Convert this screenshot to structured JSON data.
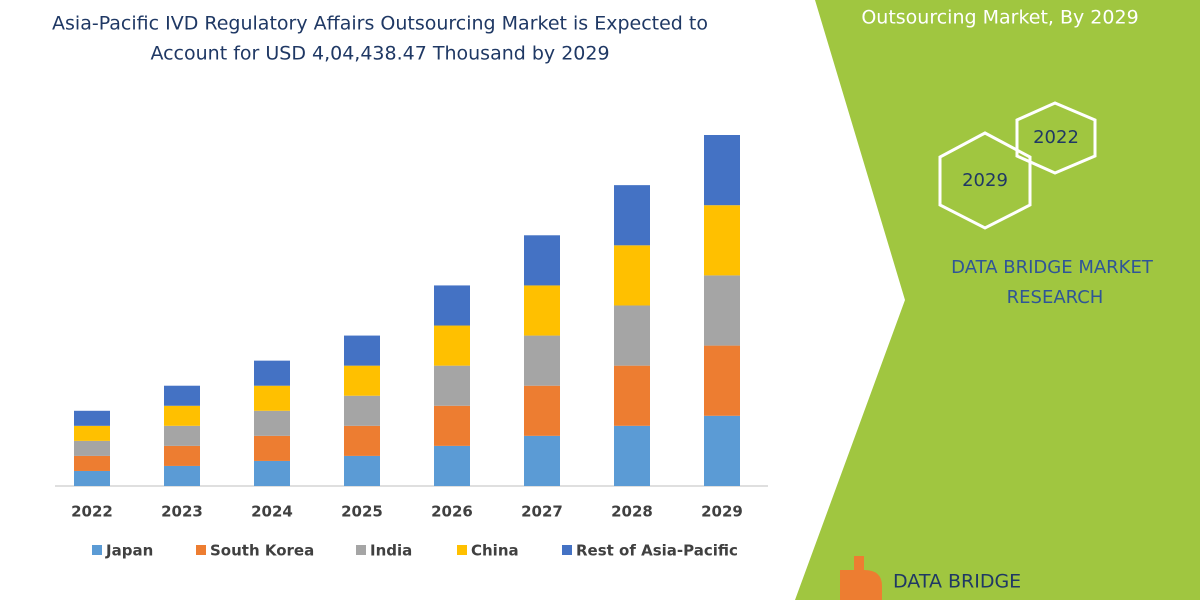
{
  "chart_data": {
    "type": "bar",
    "stacked": true,
    "title": "Asia-Pacific IVD Regulatory Affairs Outsourcing Market is Expected to",
    "subtitle": "Account for USD 4,04,438.47 Thousand by 2029",
    "categories": [
      "2022",
      "2023",
      "2024",
      "2025",
      "2026",
      "2027",
      "2028",
      "2029"
    ],
    "series": [
      {
        "name": "Japan",
        "color": "#5b9bd5",
        "values": [
          15,
          20,
          25,
          30,
          40,
          50,
          60,
          70
        ]
      },
      {
        "name": "South Korea",
        "color": "#ed7d31",
        "values": [
          15,
          20,
          25,
          30,
          40,
          50,
          60,
          70
        ]
      },
      {
        "name": "India",
        "color": "#a5a5a5",
        "values": [
          15,
          20,
          25,
          30,
          40,
          50,
          60,
          70
        ]
      },
      {
        "name": "China",
        "color": "#ffc000",
        "values": [
          15,
          20,
          25,
          30,
          40,
          50,
          60,
          70
        ]
      },
      {
        "name": "Rest of Asia-Pacific",
        "color": "#4472c4",
        "values": [
          15,
          20,
          25,
          30,
          40,
          50,
          60,
          70
        ]
      }
    ],
    "legend": "bottom"
  },
  "panel": {
    "heading": "Outsourcing Market, By 2029",
    "hexagons": [
      "2022",
      "2029"
    ],
    "brand": [
      "DATA BRIDGE MARKET",
      "RESEARCH"
    ],
    "logo": "DATA BRIDGE"
  }
}
